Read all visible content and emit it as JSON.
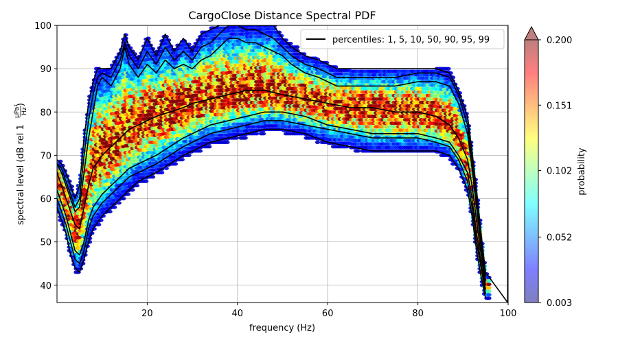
{
  "chart_data": {
    "type": "heatmap",
    "title": "CargoClose Distance Spectral PDF",
    "xlabel": "frequency (Hz)",
    "ylabel_prefix": "spectral level (dB rel 1 ",
    "ylabel_frac_num": "μPa²",
    "ylabel_frac_den": "Hz",
    "ylabel_suffix": ")",
    "xlim": [
      0,
      100
    ],
    "ylim": [
      36,
      100
    ],
    "xticks": [
      20,
      40,
      60,
      80,
      100
    ],
    "yticks": [
      40,
      50,
      60,
      70,
      80,
      90,
      100
    ],
    "grid": true,
    "legend": {
      "placement": "top-right",
      "label": "percentiles: 1, 5, 10, 50, 90, 95, 99"
    },
    "colorbar": {
      "label": "probability",
      "ticks": [
        "0.003",
        "0.052",
        "0.102",
        "0.151",
        "0.200"
      ],
      "range": [
        0.003,
        0.2
      ],
      "colormap": "jet",
      "extend": "max"
    },
    "percentiles": [
      1,
      5,
      10,
      50,
      90,
      95,
      99
    ],
    "percentile_curves": [
      {
        "name": "1",
        "points": [
          [
            0,
            58
          ],
          [
            1,
            55
          ],
          [
            2,
            52
          ],
          [
            3,
            47
          ],
          [
            4,
            44
          ],
          [
            5,
            43
          ],
          [
            6,
            46
          ],
          [
            7,
            50
          ],
          [
            8,
            53
          ],
          [
            10,
            56
          ],
          [
            12,
            58
          ],
          [
            14,
            60
          ],
          [
            16,
            62
          ],
          [
            18,
            64
          ],
          [
            20,
            65
          ],
          [
            22,
            66
          ],
          [
            25,
            68
          ],
          [
            28,
            70
          ],
          [
            30,
            71
          ],
          [
            34,
            73
          ],
          [
            38,
            74
          ],
          [
            42,
            75
          ],
          [
            46,
            76
          ],
          [
            50,
            76
          ],
          [
            55,
            75
          ],
          [
            60,
            73
          ],
          [
            65,
            72
          ],
          [
            70,
            71
          ],
          [
            75,
            71
          ],
          [
            80,
            71
          ],
          [
            84,
            71
          ],
          [
            87,
            70
          ],
          [
            89,
            67
          ],
          [
            91,
            62
          ],
          [
            92,
            56
          ],
          [
            93,
            48
          ],
          [
            94,
            42
          ],
          [
            95,
            37
          ]
        ]
      },
      {
        "name": "5",
        "points": [
          [
            0,
            60
          ],
          [
            1,
            57
          ],
          [
            2,
            54
          ],
          [
            3,
            50
          ],
          [
            4,
            46
          ],
          [
            5,
            45
          ],
          [
            6,
            48
          ],
          [
            7,
            53
          ],
          [
            8,
            56
          ],
          [
            10,
            59
          ],
          [
            12,
            61
          ],
          [
            14,
            63
          ],
          [
            16,
            65
          ],
          [
            18,
            66
          ],
          [
            20,
            67
          ],
          [
            22,
            68
          ],
          [
            25,
            70
          ],
          [
            28,
            72
          ],
          [
            30,
            73
          ],
          [
            34,
            75
          ],
          [
            38,
            76
          ],
          [
            42,
            77
          ],
          [
            46,
            78
          ],
          [
            50,
            78
          ],
          [
            55,
            77
          ],
          [
            60,
            76
          ],
          [
            65,
            75
          ],
          [
            70,
            74
          ],
          [
            75,
            74
          ],
          [
            80,
            74
          ],
          [
            84,
            73
          ],
          [
            87,
            72
          ],
          [
            89,
            69
          ],
          [
            91,
            64
          ],
          [
            92,
            58
          ],
          [
            93,
            50
          ],
          [
            94,
            44
          ],
          [
            95,
            38
          ]
        ]
      },
      {
        "name": "10",
        "points": [
          [
            0,
            62
          ],
          [
            1,
            59
          ],
          [
            2,
            56
          ],
          [
            3,
            52
          ],
          [
            4,
            48
          ],
          [
            5,
            47
          ],
          [
            6,
            50
          ],
          [
            7,
            55
          ],
          [
            8,
            58
          ],
          [
            10,
            61
          ],
          [
            12,
            63
          ],
          [
            14,
            65
          ],
          [
            16,
            67
          ],
          [
            18,
            68
          ],
          [
            20,
            69
          ],
          [
            22,
            70
          ],
          [
            25,
            72
          ],
          [
            28,
            74
          ],
          [
            30,
            75
          ],
          [
            34,
            77
          ],
          [
            38,
            78
          ],
          [
            42,
            79
          ],
          [
            46,
            80
          ],
          [
            50,
            80
          ],
          [
            55,
            79
          ],
          [
            60,
            77
          ],
          [
            65,
            76
          ],
          [
            70,
            75
          ],
          [
            75,
            75
          ],
          [
            80,
            75
          ],
          [
            84,
            74
          ],
          [
            87,
            73
          ],
          [
            89,
            70
          ],
          [
            91,
            66
          ],
          [
            92,
            60
          ],
          [
            93,
            52
          ],
          [
            94,
            45
          ],
          [
            95,
            39
          ]
        ]
      },
      {
        "name": "50",
        "points": [
          [
            0,
            66
          ],
          [
            1,
            63
          ],
          [
            2,
            60
          ],
          [
            3,
            57
          ],
          [
            4,
            54
          ],
          [
            5,
            53
          ],
          [
            6,
            58
          ],
          [
            7,
            63
          ],
          [
            8,
            67
          ],
          [
            10,
            70
          ],
          [
            12,
            72
          ],
          [
            14,
            74
          ],
          [
            16,
            76
          ],
          [
            18,
            77
          ],
          [
            20,
            78
          ],
          [
            22,
            79
          ],
          [
            25,
            80
          ],
          [
            28,
            81
          ],
          [
            30,
            82
          ],
          [
            34,
            83
          ],
          [
            38,
            84
          ],
          [
            42,
            85
          ],
          [
            46,
            85
          ],
          [
            50,
            84
          ],
          [
            55,
            83
          ],
          [
            60,
            82
          ],
          [
            65,
            81
          ],
          [
            70,
            81
          ],
          [
            75,
            80
          ],
          [
            80,
            80
          ],
          [
            84,
            79
          ],
          [
            87,
            77
          ],
          [
            89,
            74
          ],
          [
            91,
            69
          ],
          [
            92,
            63
          ],
          [
            93,
            55
          ],
          [
            94,
            47
          ],
          [
            95,
            40
          ]
        ]
      },
      {
        "name": "90",
        "points": [
          [
            0,
            68
          ],
          [
            1,
            66
          ],
          [
            2,
            63
          ],
          [
            3,
            60
          ],
          [
            4,
            57
          ],
          [
            5,
            58
          ],
          [
            6,
            66
          ],
          [
            7,
            74
          ],
          [
            8,
            80
          ],
          [
            9,
            86
          ],
          [
            10,
            88
          ],
          [
            12,
            86
          ],
          [
            14,
            90
          ],
          [
            15,
            95
          ],
          [
            16,
            91
          ],
          [
            18,
            88
          ],
          [
            20,
            91
          ],
          [
            22,
            89
          ],
          [
            24,
            92
          ],
          [
            26,
            90
          ],
          [
            28,
            91
          ],
          [
            30,
            90
          ],
          [
            32,
            92
          ],
          [
            34,
            93
          ],
          [
            36,
            95
          ],
          [
            38,
            97
          ],
          [
            40,
            97
          ],
          [
            42,
            96
          ],
          [
            44,
            96
          ],
          [
            46,
            95
          ],
          [
            48,
            94
          ],
          [
            50,
            93
          ],
          [
            52,
            91
          ],
          [
            55,
            89
          ],
          [
            58,
            88
          ],
          [
            60,
            87
          ],
          [
            62,
            86
          ],
          [
            65,
            86
          ],
          [
            68,
            86
          ],
          [
            70,
            86
          ],
          [
            75,
            86
          ],
          [
            80,
            87
          ],
          [
            84,
            87
          ],
          [
            87,
            86
          ],
          [
            89,
            82
          ],
          [
            91,
            75
          ],
          [
            92,
            67
          ],
          [
            93,
            58
          ],
          [
            94,
            49
          ],
          [
            95,
            41
          ]
        ]
      },
      {
        "name": "95",
        "points": [
          [
            0,
            68
          ],
          [
            1,
            67
          ],
          [
            2,
            64
          ],
          [
            3,
            61
          ],
          [
            4,
            58
          ],
          [
            5,
            60
          ],
          [
            6,
            70
          ],
          [
            7,
            78
          ],
          [
            8,
            84
          ],
          [
            9,
            88
          ],
          [
            10,
            89
          ],
          [
            12,
            88
          ],
          [
            14,
            92
          ],
          [
            15,
            96
          ],
          [
            16,
            93
          ],
          [
            18,
            90
          ],
          [
            20,
            94
          ],
          [
            22,
            91
          ],
          [
            24,
            95
          ],
          [
            26,
            92
          ],
          [
            28,
            94
          ],
          [
            30,
            92
          ],
          [
            32,
            95
          ],
          [
            34,
            96
          ],
          [
            36,
            98
          ],
          [
            38,
            100
          ],
          [
            40,
            100
          ],
          [
            42,
            99
          ],
          [
            44,
            99
          ],
          [
            46,
            98
          ],
          [
            48,
            97
          ],
          [
            50,
            95
          ],
          [
            52,
            93
          ],
          [
            55,
            91
          ],
          [
            58,
            90
          ],
          [
            60,
            89
          ],
          [
            62,
            88
          ],
          [
            65,
            88
          ],
          [
            68,
            88
          ],
          [
            70,
            88
          ],
          [
            75,
            88
          ],
          [
            80,
            89
          ],
          [
            84,
            89
          ],
          [
            87,
            88
          ],
          [
            89,
            84
          ],
          [
            91,
            77
          ],
          [
            92,
            69
          ],
          [
            93,
            60
          ],
          [
            94,
            50
          ],
          [
            95,
            42
          ]
        ]
      },
      {
        "name": "99",
        "points": [
          [
            0,
            69
          ],
          [
            1,
            68
          ],
          [
            2,
            66
          ],
          [
            3,
            63
          ],
          [
            4,
            60
          ],
          [
            5,
            63
          ],
          [
            6,
            74
          ],
          [
            7,
            82
          ],
          [
            8,
            87
          ],
          [
            9,
            90
          ],
          [
            10,
            90
          ],
          [
            12,
            90
          ],
          [
            14,
            94
          ],
          [
            15,
            98
          ],
          [
            16,
            95
          ],
          [
            18,
            92
          ],
          [
            20,
            97
          ],
          [
            22,
            93
          ],
          [
            24,
            98
          ],
          [
            26,
            94
          ],
          [
            28,
            97
          ],
          [
            30,
            94
          ],
          [
            32,
            98
          ],
          [
            34,
            99
          ],
          [
            36,
            100
          ],
          [
            38,
            100
          ],
          [
            40,
            100
          ],
          [
            42,
            100
          ],
          [
            44,
            100
          ],
          [
            46,
            100
          ],
          [
            48,
            100
          ],
          [
            50,
            97
          ],
          [
            52,
            95
          ],
          [
            55,
            93
          ],
          [
            58,
            92
          ],
          [
            60,
            91
          ],
          [
            62,
            90
          ],
          [
            65,
            90
          ],
          [
            68,
            90
          ],
          [
            70,
            90
          ],
          [
            75,
            90
          ],
          [
            80,
            90
          ],
          [
            84,
            90
          ],
          [
            87,
            89
          ],
          [
            89,
            85
          ],
          [
            91,
            79
          ],
          [
            92,
            71
          ],
          [
            93,
            62
          ],
          [
            94,
            52
          ],
          [
            95,
            43
          ],
          [
            99.9,
            36
          ],
          [
            100,
            100
          ]
        ]
      }
    ]
  }
}
